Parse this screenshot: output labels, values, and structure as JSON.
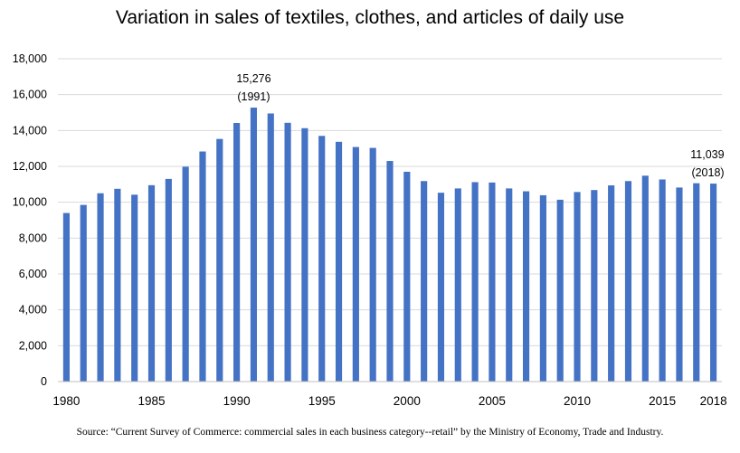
{
  "chart_data": {
    "type": "bar",
    "title": "Variation in sales of textiles, clothes, and articles of daily use",
    "source": "Source: “Current Survey of Commerce: commercial sales in each business category--retail” by the Ministry of Economy, Trade and Industry.",
    "x": [
      1980,
      1981,
      1982,
      1983,
      1984,
      1985,
      1986,
      1987,
      1988,
      1989,
      1990,
      1991,
      1992,
      1993,
      1994,
      1995,
      1996,
      1997,
      1998,
      1999,
      2000,
      2001,
      2002,
      2003,
      2004,
      2005,
      2006,
      2007,
      2008,
      2009,
      2010,
      2011,
      2012,
      2013,
      2014,
      2015,
      2016,
      2017,
      2018
    ],
    "values": [
      9400,
      9850,
      10500,
      10750,
      10420,
      10950,
      11300,
      11980,
      12830,
      13530,
      14420,
      15276,
      14950,
      14430,
      14130,
      13700,
      13370,
      13080,
      13030,
      12300,
      11700,
      11180,
      10530,
      10770,
      11120,
      11100,
      10770,
      10610,
      10390,
      10140,
      10570,
      10680,
      10940,
      11180,
      11480,
      11270,
      10820,
      11060,
      11039
    ],
    "x_tick_labels": [
      "1980",
      "1985",
      "1990",
      "1995",
      "2000",
      "2005",
      "2010",
      "2015",
      "2018"
    ],
    "y_tick_labels": [
      "0",
      "2,000",
      "4,000",
      "6,000",
      "8,000",
      "10,000",
      "12,000",
      "14,000",
      "16,000",
      "18,000"
    ],
    "ylim": [
      0,
      18000
    ],
    "xlabel": "",
    "ylabel": "",
    "grid": true,
    "bar_color": "#4472C4",
    "grid_color": "#D9D9D9",
    "annotations": [
      {
        "year": 1991,
        "value_label": "15,276",
        "year_label": "(1991)"
      },
      {
        "year": 2018,
        "value_label": "11,039",
        "year_label": "(2018)"
      }
    ]
  }
}
